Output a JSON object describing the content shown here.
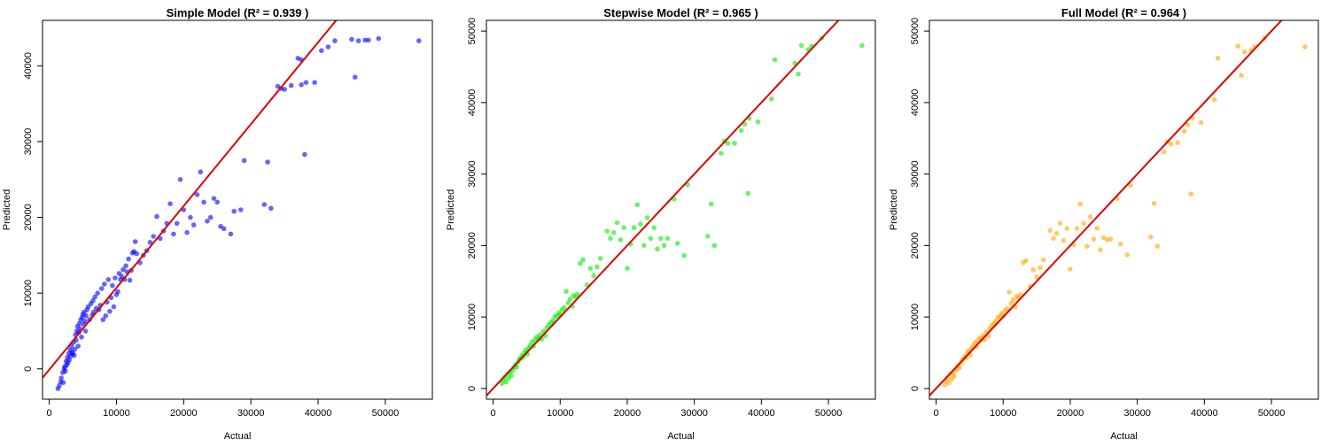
{
  "chart_data": [
    {
      "type": "scatter",
      "title": "Simple Model (R² = 0.939 )",
      "xlabel": "Actual",
      "ylabel": "Predicted",
      "xlim": [
        -1000,
        57000
      ],
      "ylim": [
        -4000,
        46000
      ],
      "xticks": [
        0,
        10000,
        20000,
        30000,
        40000,
        50000
      ],
      "yticks": [
        0,
        10000,
        20000,
        30000,
        40000
      ],
      "point_color": "#0000ff",
      "line_color": "#dd0000",
      "reference_line": {
        "slope": 1.08,
        "intercept": -100
      },
      "grid": false,
      "points": [
        [
          1300,
          -2600
        ],
        [
          1500,
          -2200
        ],
        [
          1700,
          -1700
        ],
        [
          1800,
          -1200
        ],
        [
          2000,
          -500
        ],
        [
          2100,
          -1800
        ],
        [
          2200,
          0
        ],
        [
          2300,
          300
        ],
        [
          2400,
          -300
        ],
        [
          2500,
          1000
        ],
        [
          2600,
          500
        ],
        [
          2700,
          1500
        ],
        [
          2800,
          800
        ],
        [
          2900,
          2000
        ],
        [
          3000,
          1200
        ],
        [
          3100,
          2500
        ],
        [
          3200,
          1700
        ],
        [
          3300,
          3000
        ],
        [
          3400,
          2200
        ],
        [
          3500,
          2000
        ],
        [
          3600,
          3500
        ],
        [
          3700,
          1800
        ],
        [
          3800,
          2600
        ],
        [
          3900,
          4500
        ],
        [
          4000,
          3800
        ],
        [
          4100,
          5000
        ],
        [
          4200,
          5600
        ],
        [
          4300,
          3000
        ],
        [
          4400,
          4800
        ],
        [
          4500,
          6000
        ],
        [
          4600,
          5300
        ],
        [
          4700,
          6500
        ],
        [
          4800,
          4200
        ],
        [
          4900,
          6800
        ],
        [
          5000,
          7200
        ],
        [
          5100,
          5900
        ],
        [
          5200,
          7500
        ],
        [
          5300,
          6300
        ],
        [
          5400,
          5000
        ],
        [
          5500,
          7000
        ],
        [
          5600,
          7800
        ],
        [
          5800,
          8200
        ],
        [
          6000,
          6500
        ],
        [
          6200,
          8600
        ],
        [
          6400,
          7100
        ],
        [
          6500,
          9000
        ],
        [
          6600,
          7500
        ],
        [
          6800,
          9500
        ],
        [
          7000,
          8000
        ],
        [
          7200,
          10000
        ],
        [
          7400,
          7800
        ],
        [
          7600,
          8400
        ],
        [
          7800,
          10600
        ],
        [
          8000,
          6500
        ],
        [
          8200,
          11200
        ],
        [
          8400,
          7000
        ],
        [
          8600,
          8800
        ],
        [
          8800,
          11800
        ],
        [
          9000,
          7600
        ],
        [
          9200,
          9400
        ],
        [
          9400,
          11000
        ],
        [
          9600,
          8200
        ],
        [
          9800,
          12000
        ],
        [
          10000,
          9800
        ],
        [
          10200,
          10200
        ],
        [
          10400,
          12600
        ],
        [
          10600,
          11800
        ],
        [
          10800,
          12200
        ],
        [
          11000,
          13100
        ],
        [
          11200,
          11800
        ],
        [
          11400,
          13600
        ],
        [
          11600,
          12800
        ],
        [
          11800,
          14500
        ],
        [
          12000,
          11700
        ],
        [
          12200,
          13000
        ],
        [
          12400,
          15300
        ],
        [
          12600,
          15500
        ],
        [
          12800,
          16800
        ],
        [
          13000,
          15200
        ],
        [
          13500,
          14000
        ],
        [
          14000,
          15000
        ],
        [
          14500,
          15600
        ],
        [
          15000,
          16700
        ],
        [
          15500,
          17500
        ],
        [
          16000,
          20100
        ],
        [
          16500,
          17200
        ],
        [
          17000,
          18200
        ],
        [
          17500,
          19200
        ],
        [
          18000,
          21800
        ],
        [
          18500,
          17800
        ],
        [
          19000,
          19200
        ],
        [
          19500,
          25000
        ],
        [
          20000,
          21000
        ],
        [
          20500,
          18000
        ],
        [
          21000,
          20000
        ],
        [
          21500,
          19000
        ],
        [
          22000,
          23000
        ],
        [
          22500,
          26000
        ],
        [
          23000,
          22000
        ],
        [
          23500,
          19500
        ],
        [
          24000,
          20000
        ],
        [
          24500,
          22500
        ],
        [
          25000,
          22000
        ],
        [
          25500,
          18800
        ],
        [
          26000,
          18500
        ],
        [
          27000,
          17800
        ],
        [
          27500,
          20800
        ],
        [
          28500,
          21000
        ],
        [
          29000,
          27500
        ],
        [
          32000,
          21700
        ],
        [
          32500,
          27300
        ],
        [
          33000,
          21200
        ],
        [
          34000,
          37300
        ],
        [
          34500,
          37000
        ],
        [
          35000,
          36900
        ],
        [
          36000,
          37400
        ],
        [
          37000,
          41000
        ],
        [
          37500,
          40800
        ],
        [
          37500,
          37500
        ],
        [
          38000,
          28300
        ],
        [
          38200,
          37800
        ],
        [
          39500,
          37800
        ],
        [
          40500,
          42000
        ],
        [
          41500,
          42500
        ],
        [
          42500,
          43300
        ],
        [
          45000,
          43500
        ],
        [
          45500,
          38500
        ],
        [
          46000,
          43300
        ],
        [
          47000,
          43400
        ],
        [
          47500,
          43400
        ],
        [
          49000,
          43600
        ],
        [
          55000,
          43300
        ]
      ]
    },
    {
      "type": "scatter",
      "title": "Stepwise Model (R² = 0.965 )",
      "xlabel": "Actual",
      "ylabel": "Predicted",
      "xlim": [
        -1000,
        57000
      ],
      "ylim": [
        -1500,
        51500
      ],
      "xticks": [
        0,
        10000,
        20000,
        30000,
        40000,
        50000
      ],
      "yticks": [
        0,
        10000,
        20000,
        30000,
        40000,
        50000
      ],
      "point_color": "#00ee00",
      "line_color": "#dd0000",
      "reference_line": {
        "slope": 1.0,
        "intercept": 0
      },
      "grid": false,
      "points": [
        [
          1300,
          700
        ],
        [
          1500,
          1200
        ],
        [
          1700,
          1600
        ],
        [
          1900,
          900
        ],
        [
          2100,
          2000
        ],
        [
          2300,
          1400
        ],
        [
          2500,
          2300
        ],
        [
          2700,
          1800
        ],
        [
          2900,
          2500
        ],
        [
          3100,
          2900
        ],
        [
          3300,
          3300
        ],
        [
          3500,
          3000
        ],
        [
          3700,
          3700
        ],
        [
          3900,
          4100
        ],
        [
          4100,
          4200
        ],
        [
          4300,
          4600
        ],
        [
          4500,
          4400
        ],
        [
          4700,
          5000
        ],
        [
          4900,
          5400
        ],
        [
          5100,
          4800
        ],
        [
          5300,
          5600
        ],
        [
          5500,
          6000
        ],
        [
          5800,
          6500
        ],
        [
          6000,
          5900
        ],
        [
          6200,
          6800
        ],
        [
          6500,
          7200
        ],
        [
          6800,
          7000
        ],
        [
          7000,
          7500
        ],
        [
          7200,
          6900
        ],
        [
          7500,
          8000
        ],
        [
          7800,
          7400
        ],
        [
          8000,
          8500
        ],
        [
          8300,
          8900
        ],
        [
          8600,
          9200
        ],
        [
          8900,
          9500
        ],
        [
          9200,
          10000
        ],
        [
          9500,
          10200
        ],
        [
          9800,
          10600
        ],
        [
          10000,
          10300
        ],
        [
          10300,
          11000
        ],
        [
          10600,
          11300
        ],
        [
          10900,
          13600
        ],
        [
          11200,
          12000
        ],
        [
          11500,
          12500
        ],
        [
          11800,
          11500
        ],
        [
          12000,
          13000
        ],
        [
          12300,
          12800
        ],
        [
          12600,
          13200
        ],
        [
          13000,
          17500
        ],
        [
          13400,
          18000
        ],
        [
          14000,
          14500
        ],
        [
          14500,
          16800
        ],
        [
          15000,
          15800
        ],
        [
          15500,
          17000
        ],
        [
          16000,
          18200
        ],
        [
          17000,
          22000
        ],
        [
          17500,
          21000
        ],
        [
          18000,
          21800
        ],
        [
          18500,
          23200
        ],
        [
          19000,
          20800
        ],
        [
          19500,
          22500
        ],
        [
          20000,
          16800
        ],
        [
          20500,
          20200
        ],
        [
          21000,
          22500
        ],
        [
          21500,
          25700
        ],
        [
          22000,
          23000
        ],
        [
          22500,
          20000
        ],
        [
          23000,
          23900
        ],
        [
          23500,
          21000
        ],
        [
          24000,
          22500
        ],
        [
          24500,
          19500
        ],
        [
          25000,
          21000
        ],
        [
          25500,
          20000
        ],
        [
          26000,
          21000
        ],
        [
          27000,
          26500
        ],
        [
          27500,
          20300
        ],
        [
          28500,
          18600
        ],
        [
          29000,
          28500
        ],
        [
          32000,
          21300
        ],
        [
          32500,
          25800
        ],
        [
          33000,
          20000
        ],
        [
          34000,
          32900
        ],
        [
          34500,
          34600
        ],
        [
          35000,
          34300
        ],
        [
          36000,
          34300
        ],
        [
          37000,
          36100
        ],
        [
          37500,
          37000
        ],
        [
          38000,
          27300
        ],
        [
          38200,
          37800
        ],
        [
          39500,
          37300
        ],
        [
          41500,
          40500
        ],
        [
          42000,
          46000
        ],
        [
          45000,
          45500
        ],
        [
          45500,
          44000
        ],
        [
          46000,
          48000
        ],
        [
          47000,
          47400
        ],
        [
          47500,
          47900
        ],
        [
          49000,
          49000
        ],
        [
          55000,
          48000
        ]
      ]
    },
    {
      "type": "scatter",
      "title": "Full Model (R² = 0.964 )",
      "xlabel": "Actual",
      "ylabel": "Predicted",
      "xlim": [
        -1000,
        57000
      ],
      "ylim": [
        -1500,
        51500
      ],
      "xticks": [
        0,
        10000,
        20000,
        30000,
        40000,
        50000
      ],
      "yticks": [
        0,
        10000,
        20000,
        30000,
        40000,
        50000
      ],
      "point_color": "#ffa500",
      "line_color": "#dd0000",
      "reference_line": {
        "slope": 1.0,
        "intercept": 0
      },
      "grid": false,
      "points": [
        [
          1300,
          500
        ],
        [
          1500,
          1000
        ],
        [
          1700,
          1500
        ],
        [
          1900,
          800
        ],
        [
          2100,
          2000
        ],
        [
          2300,
          1300
        ],
        [
          2500,
          2200
        ],
        [
          2700,
          1700
        ],
        [
          2900,
          2500
        ],
        [
          3100,
          2800
        ],
        [
          3300,
          3200
        ],
        [
          3500,
          2900
        ],
        [
          3700,
          3600
        ],
        [
          3900,
          4000
        ],
        [
          4100,
          4200
        ],
        [
          4300,
          4500
        ],
        [
          4500,
          4300
        ],
        [
          4700,
          5000
        ],
        [
          4900,
          5300
        ],
        [
          5100,
          4700
        ],
        [
          5300,
          5600
        ],
        [
          5500,
          6000
        ],
        [
          5800,
          6400
        ],
        [
          6000,
          5800
        ],
        [
          6200,
          6700
        ],
        [
          6500,
          7100
        ],
        [
          6800,
          6900
        ],
        [
          7000,
          7400
        ],
        [
          7200,
          6800
        ],
        [
          7500,
          7900
        ],
        [
          7800,
          7300
        ],
        [
          8000,
          8400
        ],
        [
          8300,
          8800
        ],
        [
          8600,
          9100
        ],
        [
          8900,
          9400
        ],
        [
          9200,
          9900
        ],
        [
          9500,
          10100
        ],
        [
          9800,
          10500
        ],
        [
          10000,
          10200
        ],
        [
          10300,
          10900
        ],
        [
          10600,
          11200
        ],
        [
          10900,
          13500
        ],
        [
          11200,
          11900
        ],
        [
          11500,
          12400
        ],
        [
          11800,
          11400
        ],
        [
          12000,
          12900
        ],
        [
          12300,
          12700
        ],
        [
          12600,
          13100
        ],
        [
          13000,
          17600
        ],
        [
          13400,
          17900
        ],
        [
          14000,
          14300
        ],
        [
          14500,
          16600
        ],
        [
          15000,
          15600
        ],
        [
          15500,
          16900
        ],
        [
          16000,
          18000
        ],
        [
          17000,
          22100
        ],
        [
          17500,
          21000
        ],
        [
          18000,
          21700
        ],
        [
          18500,
          23100
        ],
        [
          19000,
          20700
        ],
        [
          19500,
          22400
        ],
        [
          20000,
          16700
        ],
        [
          20500,
          20100
        ],
        [
          21000,
          22400
        ],
        [
          21500,
          25800
        ],
        [
          22000,
          23100
        ],
        [
          22500,
          19900
        ],
        [
          23000,
          24000
        ],
        [
          23500,
          20900
        ],
        [
          24000,
          22400
        ],
        [
          24500,
          19400
        ],
        [
          25000,
          21100
        ],
        [
          25500,
          20800
        ],
        [
          26000,
          20900
        ],
        [
          27000,
          26600
        ],
        [
          27500,
          20200
        ],
        [
          28500,
          18700
        ],
        [
          29000,
          28400
        ],
        [
          32000,
          21200
        ],
        [
          32500,
          25900
        ],
        [
          33000,
          19900
        ],
        [
          34000,
          33100
        ],
        [
          34500,
          34500
        ],
        [
          35000,
          34200
        ],
        [
          36000,
          34400
        ],
        [
          37000,
          36000
        ],
        [
          37500,
          36900
        ],
        [
          38000,
          27200
        ],
        [
          38200,
          37800
        ],
        [
          39500,
          37200
        ],
        [
          41500,
          40400
        ],
        [
          42000,
          46200
        ],
        [
          45000,
          47900
        ],
        [
          45500,
          43800
        ],
        [
          46000,
          47100
        ],
        [
          47000,
          47300
        ],
        [
          47500,
          47800
        ],
        [
          49000,
          49000
        ],
        [
          55000,
          47800
        ]
      ]
    }
  ]
}
